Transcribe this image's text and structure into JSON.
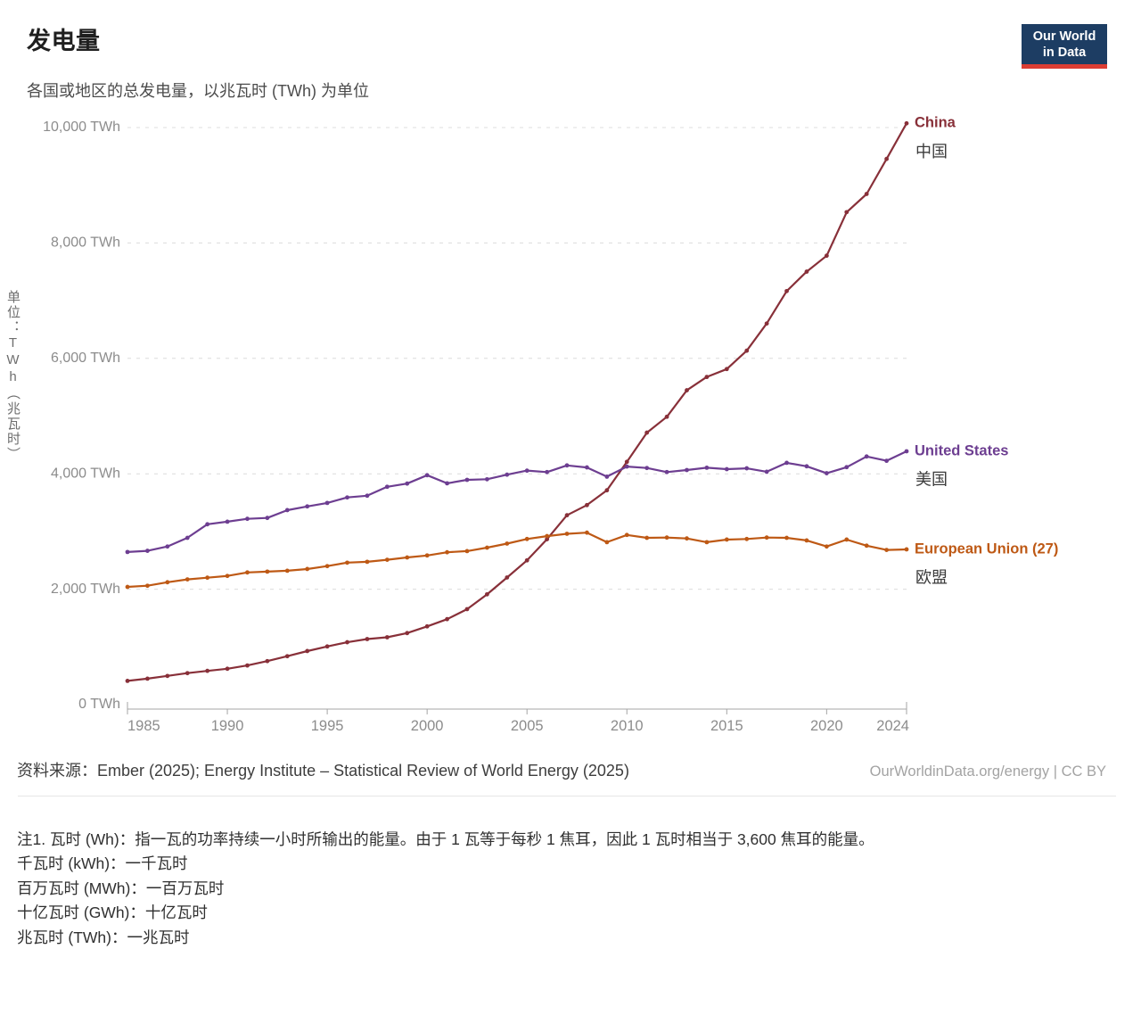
{
  "header": {
    "title": "发电量",
    "subtitle": "各国或地区的总发电量，以兆瓦时 (TWh) 为单位",
    "logo_line1": "Our World",
    "logo_line2": "in Data"
  },
  "chart_data": {
    "type": "line",
    "title": "发电量",
    "ylabel_vertical": "单位：TWh（兆瓦时）",
    "xlabel": "",
    "xlim": [
      1985,
      2024
    ],
    "ylim": [
      0,
      10000
    ],
    "grid": "horizontal-dashed",
    "legend_position": "right-end-labels",
    "x_ticks": [
      1985,
      1990,
      1995,
      2000,
      2005,
      2010,
      2015,
      2020,
      2024
    ],
    "y_ticks": [
      {
        "v": 0,
        "label": "0 TWh"
      },
      {
        "v": 2000,
        "label": "2,000 TWh"
      },
      {
        "v": 4000,
        "label": "4,000 TWh"
      },
      {
        "v": 6000,
        "label": "6,000 TWh"
      },
      {
        "v": 8000,
        "label": "8,000 TWh"
      },
      {
        "v": 10000,
        "label": "10,000 TWh"
      }
    ],
    "x": [
      1985,
      1986,
      1987,
      1988,
      1989,
      1990,
      1991,
      1992,
      1993,
      1994,
      1995,
      1996,
      1997,
      1998,
      1999,
      2000,
      2001,
      2002,
      2003,
      2004,
      2005,
      2006,
      2007,
      2008,
      2009,
      2010,
      2011,
      2012,
      2013,
      2014,
      2015,
      2016,
      2017,
      2018,
      2019,
      2020,
      2021,
      2022,
      2023,
      2024
    ],
    "series": [
      {
        "name": "China",
        "name_local": "中国",
        "color": "#883039",
        "values": [
          411,
          450,
          497,
          545,
          585,
          621,
          678,
          754,
          839,
          928,
          1008,
          1081,
          1136,
          1167,
          1239,
          1356,
          1481,
          1654,
          1911,
          2203,
          2500,
          2866,
          3282,
          3457,
          3714,
          4207,
          4713,
          4988,
          5447,
          5678,
          5815,
          6133,
          6604,
          7166,
          7503,
          7779,
          8534,
          8849,
          9456,
          10073
        ]
      },
      {
        "name": "United States",
        "name_local": "美国",
        "color": "#6D3E91",
        "values": [
          2645,
          2665,
          2740,
          2890,
          3125,
          3170,
          3220,
          3235,
          3370,
          3435,
          3495,
          3590,
          3620,
          3775,
          3830,
          3975,
          3835,
          3895,
          3905,
          3985,
          4055,
          4030,
          4145,
          4110,
          3950,
          4125,
          4100,
          4030,
          4065,
          4105,
          4080,
          4095,
          4035,
          4190,
          4130,
          4010,
          4115,
          4300,
          4225,
          4390
        ]
      },
      {
        "name": "European Union (27)",
        "name_local": "欧盟",
        "color": "#BE5915",
        "values": [
          2040,
          2060,
          2120,
          2170,
          2200,
          2230,
          2290,
          2305,
          2320,
          2350,
          2400,
          2460,
          2475,
          2510,
          2550,
          2585,
          2640,
          2660,
          2720,
          2790,
          2870,
          2920,
          2960,
          2980,
          2815,
          2940,
          2890,
          2895,
          2880,
          2815,
          2860,
          2870,
          2895,
          2890,
          2845,
          2740,
          2860,
          2755,
          2680,
          2690
        ]
      }
    ]
  },
  "footer": {
    "source": "资料来源：Ember (2025); Energy Institute – Statistical Review of World Energy (2025)",
    "credit": "OurWorldinData.org/energy | CC BY",
    "notes": [
      "注1. 瓦时 (Wh)：指一瓦的功率持续一小时所输出的能量。由于 1 瓦等于每秒 1 焦耳，因此 1 瓦时相当于 3,600 焦耳的能量。",
      "千瓦时 (kWh)：一千瓦时",
      "百万瓦时 (MWh)：一百万瓦时",
      "十亿瓦时 (GWh)：十亿瓦时",
      "兆瓦时 (TWh)：一兆瓦时"
    ]
  }
}
